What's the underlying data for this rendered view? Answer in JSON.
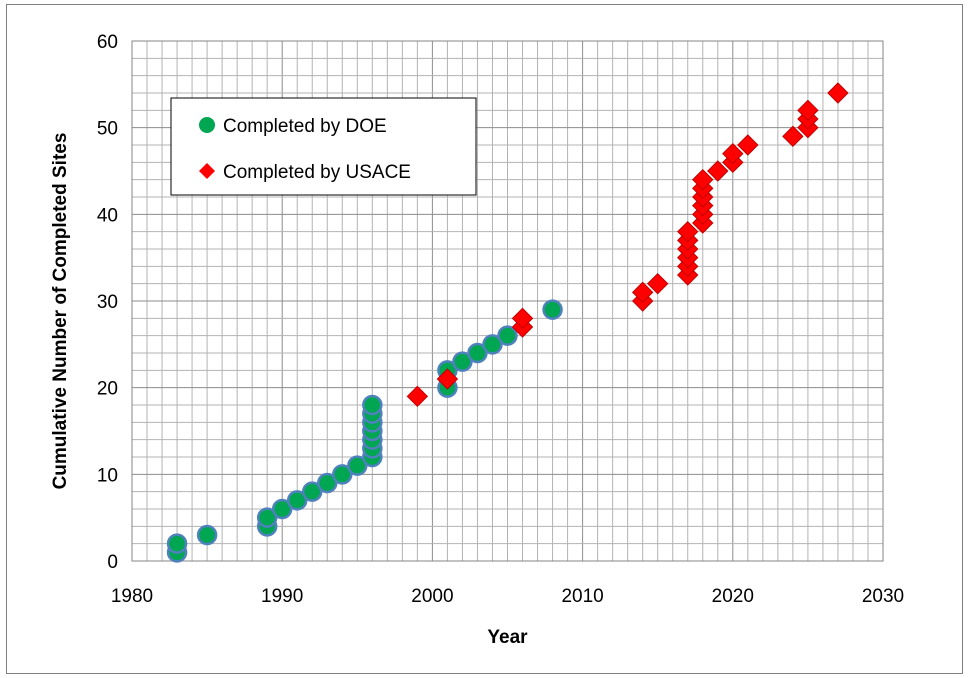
{
  "chart_data": {
    "type": "scatter",
    "title": "",
    "xlabel": "Year",
    "ylabel": "Cumulative Number of Completed Sites",
    "xlim": [
      1980,
      2030
    ],
    "ylim": [
      0,
      60
    ],
    "x_ticks": [
      "1980",
      "1990",
      "2000",
      "2010",
      "2020",
      "2030"
    ],
    "y_ticks": [
      "0",
      "10",
      "20",
      "30",
      "40",
      "50",
      "60"
    ],
    "grid": true,
    "legend_position": "top-left",
    "series": [
      {
        "name": "Completed by DOE",
        "marker": "circle",
        "color": "#00a651",
        "edge_color": "#4f81bd",
        "points": [
          [
            1983,
            1
          ],
          [
            1983,
            2
          ],
          [
            1985,
            3
          ],
          [
            1989,
            4
          ],
          [
            1989,
            5
          ],
          [
            1990,
            6
          ],
          [
            1991,
            7
          ],
          [
            1992,
            8
          ],
          [
            1993,
            9
          ],
          [
            1994,
            10
          ],
          [
            1995,
            11
          ],
          [
            1996,
            12
          ],
          [
            1996,
            13
          ],
          [
            1996,
            14
          ],
          [
            1996,
            15
          ],
          [
            1996,
            16
          ],
          [
            1996,
            17
          ],
          [
            1996,
            18
          ],
          [
            2001,
            20
          ],
          [
            2001,
            22
          ],
          [
            2002,
            23
          ],
          [
            2003,
            24
          ],
          [
            2004,
            25
          ],
          [
            2005,
            26
          ],
          [
            2008,
            29
          ]
        ]
      },
      {
        "name": "Completed by USACE",
        "marker": "diamond",
        "color": "#ff0000",
        "edge_color": "#c00000",
        "points": [
          [
            1999,
            19
          ],
          [
            2001,
            21
          ],
          [
            2006,
            27
          ],
          [
            2006,
            28
          ],
          [
            2014,
            30
          ],
          [
            2014,
            31
          ],
          [
            2015,
            32
          ],
          [
            2017,
            33
          ],
          [
            2017,
            34
          ],
          [
            2017,
            35
          ],
          [
            2017,
            36
          ],
          [
            2017,
            37
          ],
          [
            2017,
            38
          ],
          [
            2018,
            39
          ],
          [
            2018,
            40
          ],
          [
            2018,
            41
          ],
          [
            2018,
            42
          ],
          [
            2018,
            43
          ],
          [
            2018,
            44
          ],
          [
            2019,
            45
          ],
          [
            2020,
            46
          ],
          [
            2020,
            47
          ],
          [
            2021,
            48
          ],
          [
            2024,
            49
          ],
          [
            2025,
            50
          ],
          [
            2025,
            51
          ],
          [
            2025,
            52
          ],
          [
            2027,
            54
          ]
        ]
      }
    ]
  }
}
